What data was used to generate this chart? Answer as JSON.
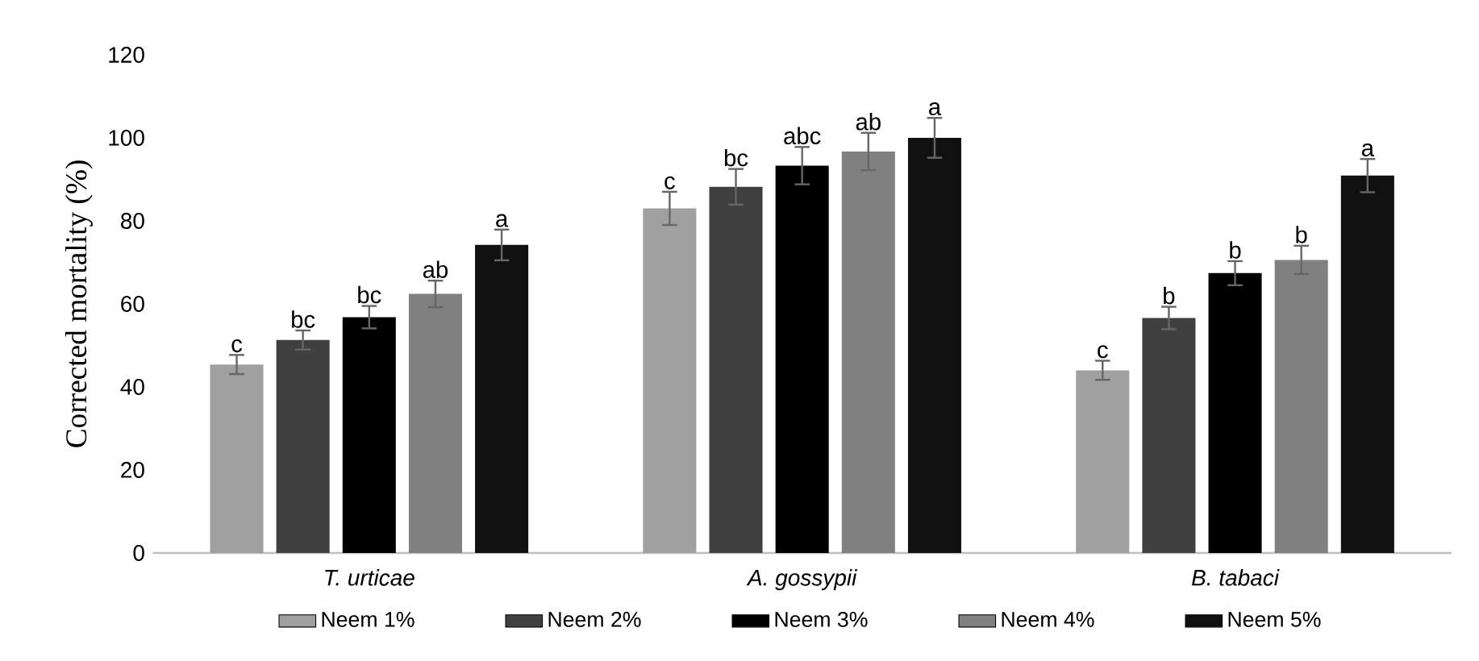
{
  "chart_data": {
    "type": "bar",
    "ylabel": "Corrected mortality (%)",
    "categories": [
      "T. urticae",
      "A. gossypii",
      "B. tabaci"
    ],
    "series": [
      {
        "name": "Neem 1%",
        "color": "#a0a0a0",
        "values": [
          45.4,
          83,
          44
        ],
        "errors": [
          2.3,
          4,
          2.3
        ]
      },
      {
        "name": "Neem 2%",
        "color": "#404040",
        "values": [
          51.3,
          88.2,
          56.6
        ],
        "errors": [
          2.3,
          4.3,
          2.7
        ]
      },
      {
        "name": "Neem 3%",
        "color": "#000000",
        "values": [
          56.8,
          93.3,
          67.4
        ],
        "errors": [
          2.7,
          4.5,
          2.9
        ]
      },
      {
        "name": "Neem 4%",
        "color": "#808080",
        "values": [
          62.4,
          96.7,
          70.6
        ],
        "errors": [
          3.2,
          4.5,
          3.4
        ]
      },
      {
        "name": "Neem 5%",
        "color": "#101010",
        "values": [
          74.2,
          100,
          90.9
        ],
        "errors": [
          3.7,
          4.8,
          4
        ]
      }
    ],
    "ylim": [
      0,
      120
    ],
    "yticks": [
      0,
      20,
      40,
      60,
      80,
      100,
      120
    ],
    "grid": false,
    "legend": "bottom",
    "annotations": [
      "c",
      "bc",
      "bc",
      "ab",
      "a",
      "c",
      "bc",
      "abc",
      "ab",
      "a",
      "c",
      "b",
      "b",
      "b",
      "a"
    ]
  }
}
